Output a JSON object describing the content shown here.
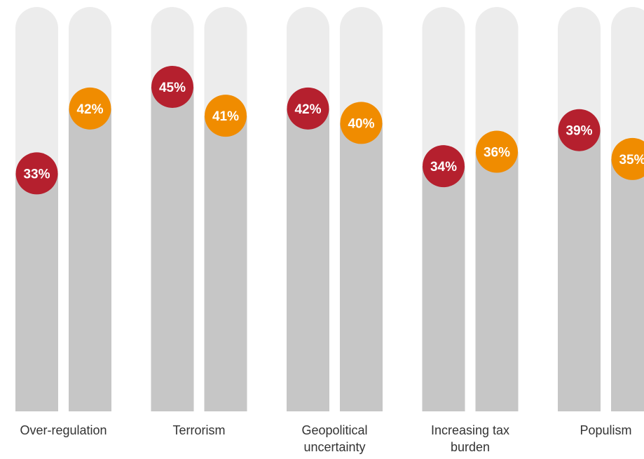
{
  "chart_data": {
    "type": "bar",
    "categories": [
      [
        "Over-regulation"
      ],
      [
        "Terrorism"
      ],
      [
        "Geopolitical",
        "uncertainty"
      ],
      [
        "Increasing tax",
        "burden"
      ],
      [
        "Populism"
      ]
    ],
    "series": [
      {
        "values": [
          33,
          45,
          42,
          34,
          39
        ],
        "value_labels": [
          "33%",
          "45%",
          "42%",
          "34%",
          "39%"
        ]
      },
      {
        "values": [
          42,
          41,
          40,
          36,
          35
        ],
        "value_labels": [
          "42%",
          "41%",
          "40%",
          "36%",
          "35%"
        ]
      }
    ],
    "ylim": [
      0,
      48
    ],
    "grid": false,
    "legend": "none",
    "colors": {
      "track": "#ececec",
      "bar": "#c6c6c6",
      "series": [
        "#b5202e",
        "#f08c00"
      ],
      "label_text": "#333333"
    }
  }
}
